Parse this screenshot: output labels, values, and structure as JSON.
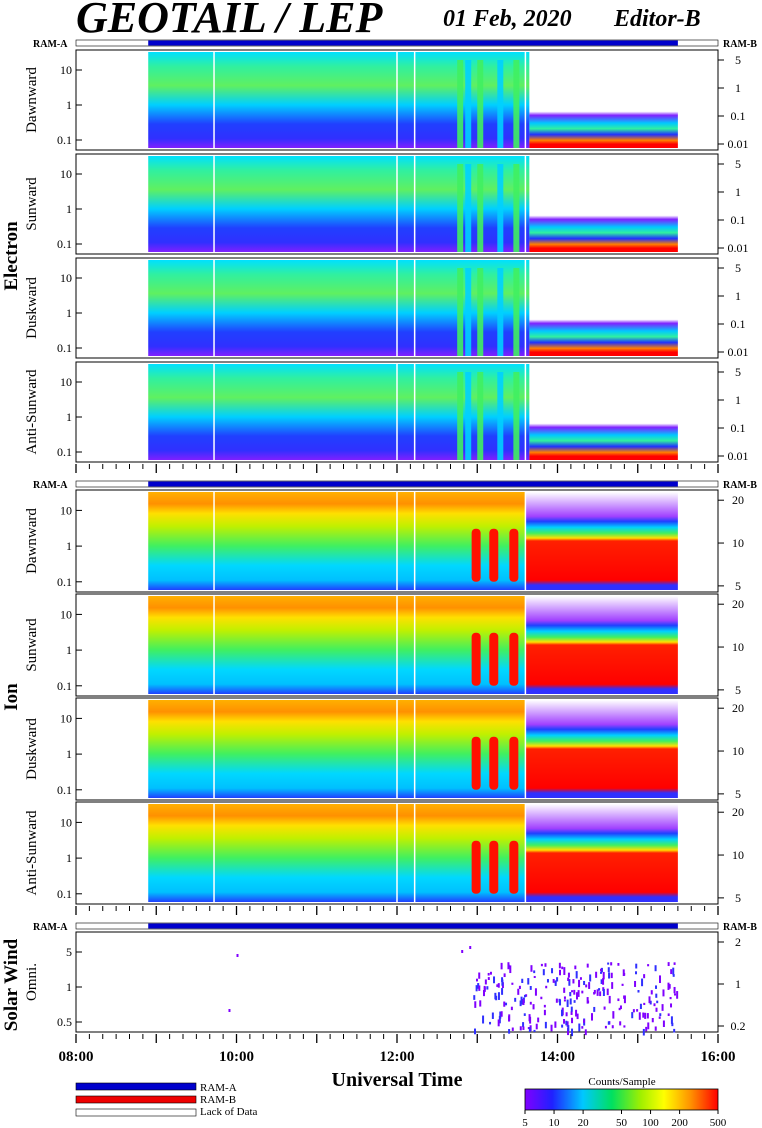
{
  "header": {
    "title": "GEOTAIL / LEP",
    "date": "01 Feb, 2020",
    "editor": "Editor-B"
  },
  "ram": {
    "a": "RAM-A",
    "b": "RAM-B"
  },
  "groups": [
    "Electron",
    "Ion",
    "Solar Wind"
  ],
  "xaxis": {
    "label": "Universal Time",
    "ticks": [
      "08:00",
      "10:00",
      "12:00",
      "14:00",
      "16:00"
    ],
    "range_hours": [
      8,
      16
    ]
  },
  "legend": {
    "items": [
      {
        "label": "RAM-A",
        "color": "#0000cc"
      },
      {
        "label": "RAM-B",
        "color": "#ee0000"
      },
      {
        "label": "Lack of Data",
        "color": "#ffffff"
      }
    ]
  },
  "colorbar": {
    "title": "Counts/Sample",
    "ticks": [
      "5",
      "10",
      "20",
      "50",
      "100",
      "200",
      "500"
    ]
  },
  "chart_data": {
    "type": "heatmap",
    "data_coverage_hours": [
      8.9,
      15.5
    ],
    "ram_a_coverage_hours": [
      8.9,
      15.5
    ],
    "data_gaps_hours": [
      9.72,
      12.0,
      12.22,
      13.6
    ],
    "panels": [
      {
        "group": "Electron",
        "label": "Dawnward",
        "left_ticks": [
          "10",
          "1",
          "0.1"
        ],
        "right_ticks": [
          "5",
          "1",
          "0.1",
          "0.01"
        ]
      },
      {
        "group": "Electron",
        "label": "Sunward",
        "left_ticks": [
          "10",
          "1",
          "0.1"
        ],
        "right_ticks": [
          "5",
          "1",
          "0.1",
          "0.01"
        ]
      },
      {
        "group": "Electron",
        "label": "Duskward",
        "left_ticks": [
          "10",
          "1",
          "0.1"
        ],
        "right_ticks": [
          "5",
          "1",
          "0.1",
          "0.01"
        ]
      },
      {
        "group": "Electron",
        "label": "Anti-Sunward",
        "left_ticks": [
          "10",
          "1",
          "0.1"
        ],
        "right_ticks": [
          "5",
          "1",
          "0.1",
          "0.01"
        ]
      },
      {
        "group": "Ion",
        "label": "Dawnward",
        "left_ticks": [
          "10",
          "1",
          "0.1"
        ],
        "right_ticks": [
          "20",
          "10",
          "5"
        ]
      },
      {
        "group": "Ion",
        "label": "Sunward",
        "left_ticks": [
          "10",
          "1",
          "0.1"
        ],
        "right_ticks": [
          "20",
          "10",
          "5"
        ]
      },
      {
        "group": "Ion",
        "label": "Duskward",
        "left_ticks": [
          "10",
          "1",
          "0.1"
        ],
        "right_ticks": [
          "20",
          "10",
          "5"
        ]
      },
      {
        "group": "Ion",
        "label": "Anti-Sunward",
        "left_ticks": [
          "10",
          "1",
          "0.1"
        ],
        "right_ticks": [
          "20",
          "10",
          "5"
        ]
      },
      {
        "group": "Solar Wind",
        "label": "Omni.",
        "left_ticks": [
          "5",
          "1",
          "0.5"
        ],
        "right_ticks": [
          "2",
          "1",
          "0.2"
        ]
      }
    ]
  }
}
